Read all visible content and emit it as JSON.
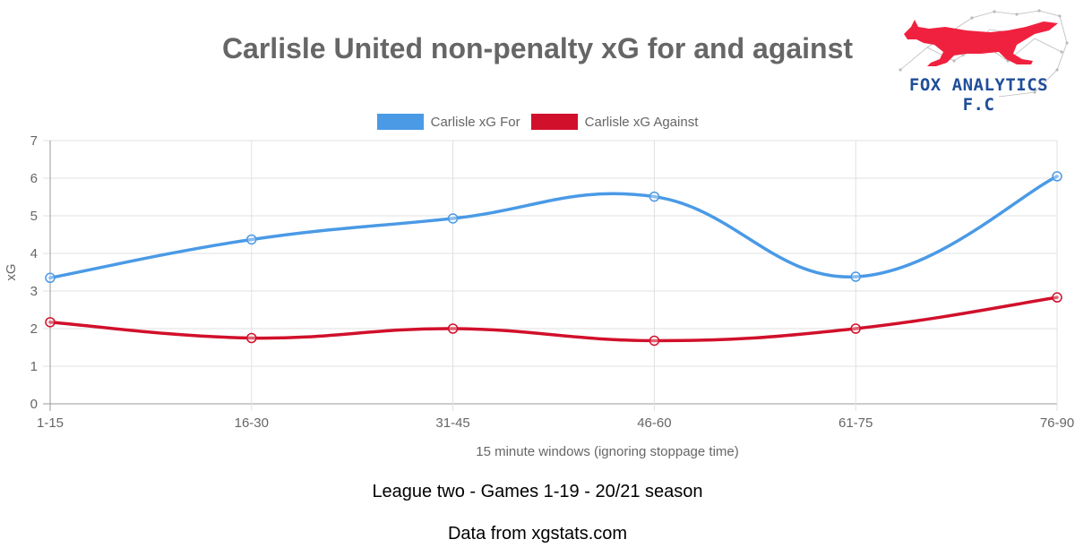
{
  "chart_data": {
    "type": "line",
    "title": "Carlisle United non-penalty xG for and against",
    "xlabel": "15 minute windows (ignoring stoppage time)",
    "ylabel": "xG",
    "categories": [
      "1-15",
      "16-30",
      "31-45",
      "46-60",
      "61-75",
      "76-90"
    ],
    "ylim": [
      0,
      7
    ],
    "yticks": [
      "0",
      "1",
      "2",
      "3",
      "4",
      "5",
      "6",
      "7"
    ],
    "grid": true,
    "legend_position": "top",
    "series": [
      {
        "name": "Carlisle xG For",
        "color": "#4a9ae6",
        "values": [
          3.35,
          4.37,
          4.93,
          5.51,
          3.38,
          6.05
        ]
      },
      {
        "name": "Carlisle xG Against",
        "color": "#d1102b",
        "values": [
          2.17,
          1.75,
          2.0,
          1.68,
          2.0,
          2.83
        ]
      }
    ]
  },
  "footer": {
    "line1": "League two - Games 1-19 - 20/21 season",
    "line2": "Data from xgstats.com"
  },
  "logo": {
    "text": "FOX ANALYTICS F.C",
    "fox_color": "#f0213f",
    "text_color": "#1f4e9a"
  }
}
